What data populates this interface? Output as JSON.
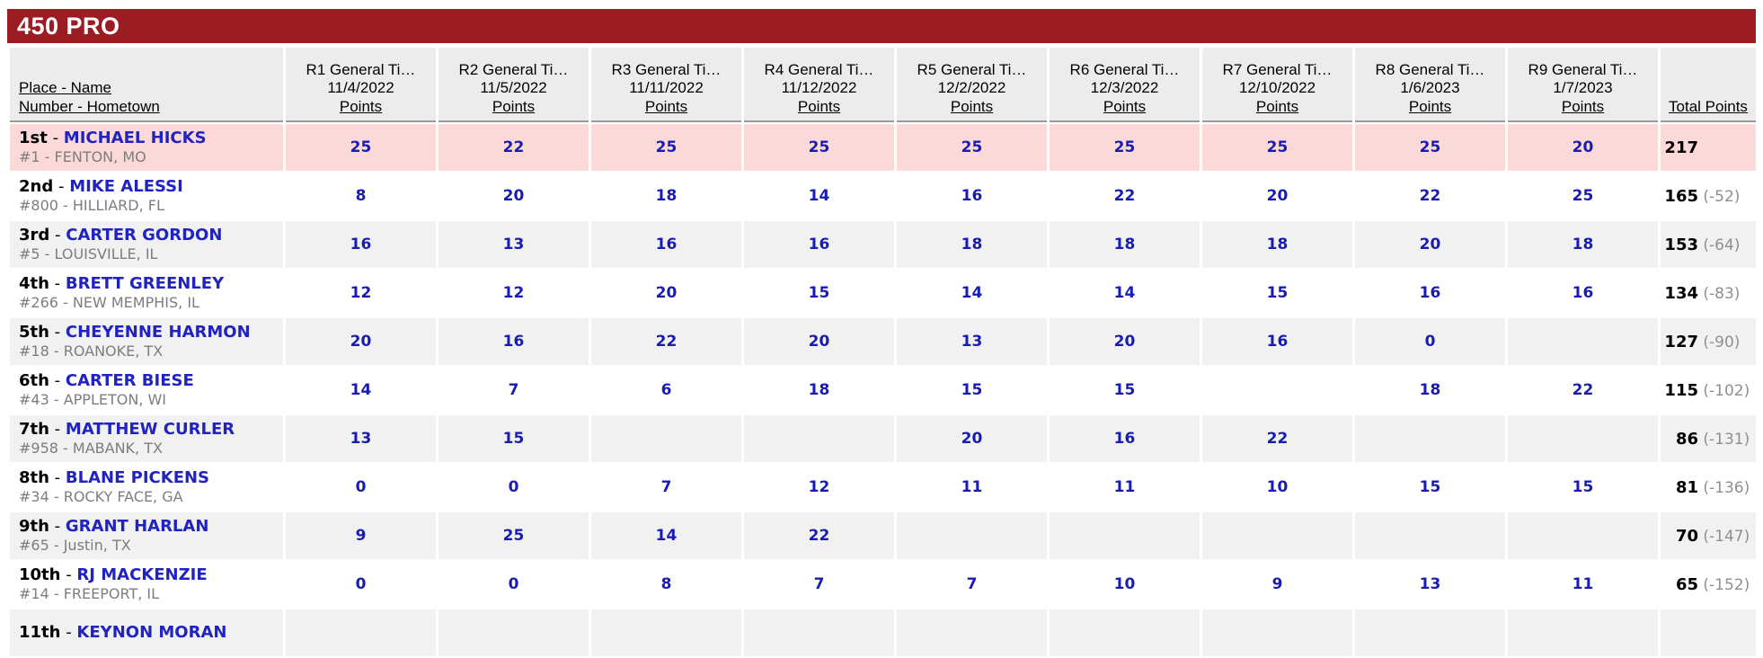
{
  "header": {
    "title": "450 PRO"
  },
  "table": {
    "place_name_label": "Place - Name",
    "number_hometown_label": "Number - Hometown",
    "points_label": "Points",
    "total_points_label": "Total Points",
    "rounds": [
      {
        "label": "R1 General Ti…",
        "date": "11/4/2022"
      },
      {
        "label": "R2 General Ti…",
        "date": "11/5/2022"
      },
      {
        "label": "R3 General Ti…",
        "date": "11/11/2022"
      },
      {
        "label": "R4 General Ti…",
        "date": "11/12/2022"
      },
      {
        "label": "R5 General Ti…",
        "date": "12/2/2022"
      },
      {
        "label": "R6 General Ti…",
        "date": "12/3/2022"
      },
      {
        "label": "R7 General Ti…",
        "date": "12/10/2022"
      },
      {
        "label": "R8 General Ti…",
        "date": "1/6/2023"
      },
      {
        "label": "R9 General Ti…",
        "date": "1/7/2023"
      }
    ],
    "rows": [
      {
        "place": "1st",
        "name": "MICHAEL HICKS",
        "number_hometown": "#1 - FENTON, MO",
        "points": [
          "25",
          "22",
          "25",
          "25",
          "25",
          "25",
          "25",
          "25",
          "20"
        ],
        "total": "217",
        "diff": "",
        "highlight": true
      },
      {
        "place": "2nd",
        "name": "MIKE ALESSI",
        "number_hometown": "#800 - HILLIARD, FL",
        "points": [
          "8",
          "20",
          "18",
          "14",
          "16",
          "22",
          "20",
          "22",
          "25"
        ],
        "total": "165",
        "diff": "(-52)"
      },
      {
        "place": "3rd",
        "name": "CARTER GORDON",
        "number_hometown": "#5 - LOUISVILLE, IL",
        "points": [
          "16",
          "13",
          "16",
          "16",
          "18",
          "18",
          "18",
          "20",
          "18"
        ],
        "total": "153",
        "diff": "(-64)"
      },
      {
        "place": "4th",
        "name": "BRETT GREENLEY",
        "number_hometown": "#266 - NEW MEMPHIS, IL",
        "points": [
          "12",
          "12",
          "20",
          "15",
          "14",
          "14",
          "15",
          "16",
          "16"
        ],
        "total": "134",
        "diff": "(-83)"
      },
      {
        "place": "5th",
        "name": "CHEYENNE HARMON",
        "number_hometown": "#18 - ROANOKE, TX",
        "points": [
          "20",
          "16",
          "22",
          "20",
          "13",
          "20",
          "16",
          "0",
          ""
        ],
        "total": "127",
        "diff": "(-90)"
      },
      {
        "place": "6th",
        "name": "CARTER BIESE",
        "number_hometown": "#43 - APPLETON, WI",
        "points": [
          "14",
          "7",
          "6",
          "18",
          "15",
          "15",
          "",
          "18",
          "22"
        ],
        "total": "115",
        "diff": "(-102)"
      },
      {
        "place": "7th",
        "name": "MATTHEW CURLER",
        "number_hometown": "#958 - MABANK, TX",
        "points": [
          "13",
          "15",
          "",
          "",
          "20",
          "16",
          "22",
          "",
          ""
        ],
        "total": "86",
        "diff": "(-131)"
      },
      {
        "place": "8th",
        "name": "BLANE PICKENS",
        "number_hometown": "#34 - ROCKY FACE, GA",
        "points": [
          "0",
          "0",
          "7",
          "12",
          "11",
          "11",
          "10",
          "15",
          "15"
        ],
        "total": "81",
        "diff": "(-136)"
      },
      {
        "place": "9th",
        "name": "GRANT HARLAN",
        "number_hometown": "#65 - Justin, TX",
        "points": [
          "9",
          "25",
          "14",
          "22",
          "",
          "",
          "",
          "",
          ""
        ],
        "total": "70",
        "diff": "(-147)"
      },
      {
        "place": "10th",
        "name": "RJ MACKENZIE",
        "number_hometown": "#14 - FREEPORT, IL",
        "points": [
          "0",
          "0",
          "8",
          "7",
          "7",
          "10",
          "9",
          "13",
          "11"
        ],
        "total": "65",
        "diff": "(-152)"
      },
      {
        "place": "11th",
        "name": "KEYNON MORAN",
        "number_hometown": "",
        "points": [
          "",
          "",
          "",
          "",
          "",
          "",
          "",
          "",
          ""
        ],
        "total": "",
        "diff": ""
      }
    ]
  },
  "colors": {
    "header_bar": "#9b1c22",
    "leader_row_bg": "#fbd9d9",
    "alt_row_bg": "#f1f1f1",
    "header_cell_bg": "#ececec",
    "points_text": "#191cb2",
    "name_link": "#2023c0",
    "subtext": "#7d7d7d",
    "diff_text": "#8f8f8f"
  }
}
